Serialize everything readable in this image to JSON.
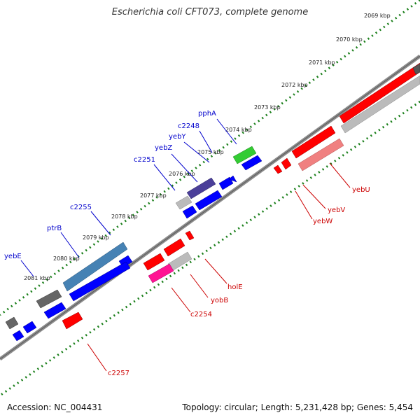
{
  "title": "Escherichia coli CFT073, complete genome",
  "accession": "Accession: NC_004431",
  "stats": "Topology: circular; Length: 5,231,428 bp; Genes: 5,454",
  "colors": {
    "backbone": "#8c8c8c",
    "tick": "#1a7f1a",
    "label_blue": "#0000cc",
    "label_red": "#cc0000",
    "forward": "#0000ff",
    "reverse": "#ff0000"
  },
  "scale_ticks": [
    {
      "label": "2069 kbp"
    },
    {
      "label": "2070 kbp"
    },
    {
      "label": "2071 kbp"
    },
    {
      "label": "2072 kbp"
    },
    {
      "label": "2073 kbp"
    },
    {
      "label": "2074 kbp"
    },
    {
      "label": "2075 kbp"
    },
    {
      "label": "2076 kbp"
    },
    {
      "label": "2077 kbp"
    },
    {
      "label": "2078 kbp"
    },
    {
      "label": "2079 kbp"
    },
    {
      "label": "2080 kbp"
    },
    {
      "label": "2081 kbp"
    }
  ],
  "gene_labels_forward": [
    {
      "name": "pphA"
    },
    {
      "name": "c2248"
    },
    {
      "name": "yebY"
    },
    {
      "name": "yebZ"
    },
    {
      "name": "c2251"
    },
    {
      "name": "c2255"
    },
    {
      "name": "ptrB"
    },
    {
      "name": "yebE"
    }
  ],
  "gene_labels_reverse": [
    {
      "name": "yebU"
    },
    {
      "name": "yebV"
    },
    {
      "name": "yebW"
    },
    {
      "name": "holE"
    },
    {
      "name": "yobB"
    },
    {
      "name": "c2254"
    },
    {
      "name": "c2257"
    }
  ]
}
